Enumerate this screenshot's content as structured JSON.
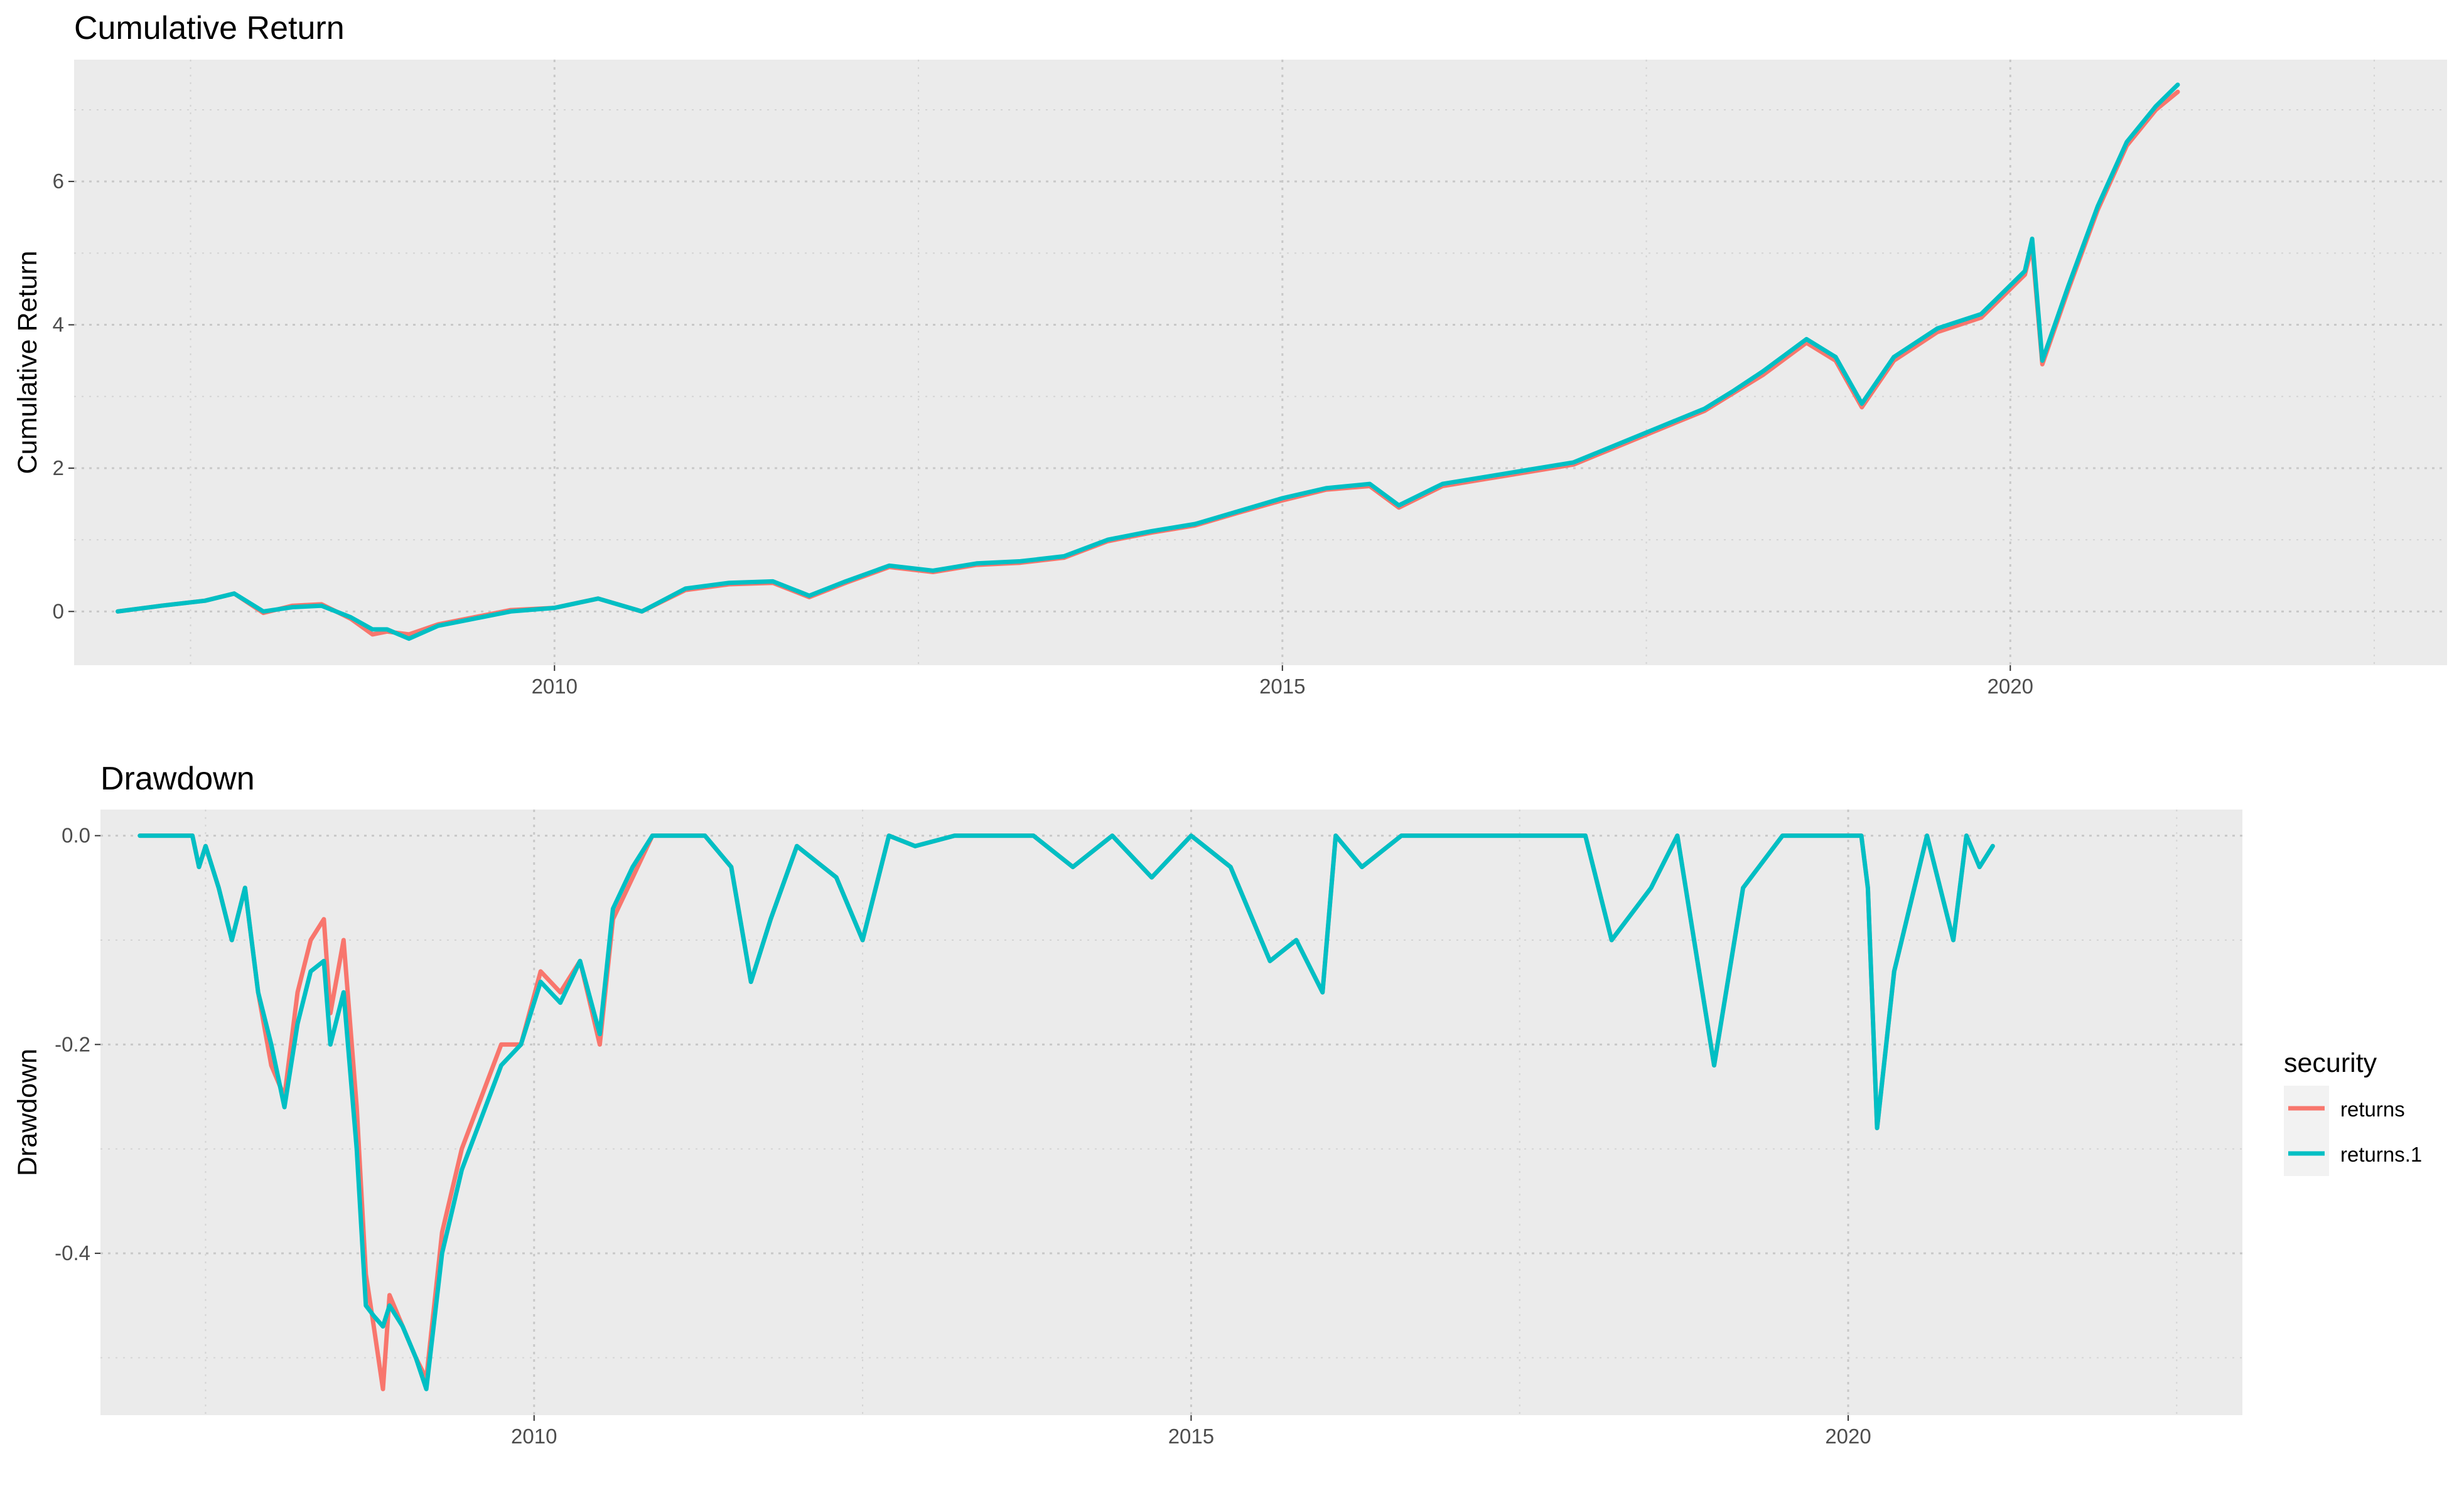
{
  "chart_data": [
    {
      "type": "line",
      "title": "Cumulative Return",
      "xlabel": "",
      "ylabel": "Cumulative Return",
      "xlim": [
        2006.7,
        2023.0
      ],
      "ylim": [
        -0.75,
        7.7
      ],
      "x_ticks": [
        2010,
        2015,
        2020
      ],
      "x_tick_labels": [
        "2010",
        "2015",
        "2020"
      ],
      "y_ticks": [
        0,
        2,
        4,
        6
      ],
      "y_tick_labels": [
        "0",
        "2",
        "4",
        "6"
      ],
      "grid": true,
      "series": [
        {
          "name": "returns",
          "color": "#F8766D",
          "x": [
            2007.0,
            2007.3,
            2007.6,
            2007.8,
            2008.0,
            2008.2,
            2008.4,
            2008.6,
            2008.75,
            2008.85,
            2009.0,
            2009.2,
            2009.4,
            2009.7,
            2010.0,
            2010.3,
            2010.6,
            2010.9,
            2011.2,
            2011.5,
            2011.75,
            2012.0,
            2012.3,
            2012.6,
            2012.9,
            2013.2,
            2013.5,
            2013.8,
            2014.1,
            2014.4,
            2014.7,
            2015.0,
            2015.3,
            2015.6,
            2015.8,
            2016.1,
            2016.4,
            2016.7,
            2017.0,
            2017.3,
            2017.6,
            2017.9,
            2018.1,
            2018.3,
            2018.6,
            2018.8,
            2018.98,
            2019.2,
            2019.5,
            2019.8,
            2020.1,
            2020.15,
            2020.22,
            2020.4,
            2020.6,
            2020.8,
            2021.0,
            2021.15
          ],
          "values": [
            0.0,
            0.08,
            0.15,
            0.25,
            -0.02,
            0.08,
            0.1,
            -0.1,
            -0.32,
            -0.28,
            -0.32,
            -0.18,
            -0.1,
            0.02,
            0.05,
            0.18,
            0.0,
            0.3,
            0.38,
            0.4,
            0.2,
            0.4,
            0.62,
            0.55,
            0.65,
            0.68,
            0.75,
            0.98,
            1.1,
            1.2,
            1.38,
            1.55,
            1.7,
            1.75,
            1.45,
            1.75,
            1.85,
            1.95,
            2.05,
            2.3,
            2.55,
            2.8,
            3.05,
            3.3,
            3.75,
            3.5,
            2.85,
            3.5,
            3.9,
            4.1,
            4.7,
            5.1,
            3.45,
            4.5,
            5.6,
            6.5,
            7.0,
            7.25
          ]
        },
        {
          "name": "returns.1",
          "color": "#00BFC4",
          "x": [
            2007.0,
            2007.3,
            2007.6,
            2007.8,
            2008.0,
            2008.2,
            2008.4,
            2008.6,
            2008.75,
            2008.85,
            2009.0,
            2009.2,
            2009.4,
            2009.7,
            2010.0,
            2010.3,
            2010.6,
            2010.9,
            2011.2,
            2011.5,
            2011.75,
            2012.0,
            2012.3,
            2012.6,
            2012.9,
            2013.2,
            2013.5,
            2013.8,
            2014.1,
            2014.4,
            2014.7,
            2015.0,
            2015.3,
            2015.6,
            2015.8,
            2016.1,
            2016.4,
            2016.7,
            2017.0,
            2017.3,
            2017.6,
            2017.9,
            2018.1,
            2018.3,
            2018.6,
            2018.8,
            2018.98,
            2019.2,
            2019.5,
            2019.8,
            2020.1,
            2020.15,
            2020.22,
            2020.4,
            2020.6,
            2020.8,
            2021.0,
            2021.15
          ],
          "values": [
            0.0,
            0.08,
            0.15,
            0.25,
            0.0,
            0.06,
            0.08,
            -0.08,
            -0.25,
            -0.25,
            -0.38,
            -0.2,
            -0.12,
            0.0,
            0.05,
            0.18,
            0.0,
            0.32,
            0.4,
            0.42,
            0.22,
            0.42,
            0.64,
            0.57,
            0.67,
            0.7,
            0.77,
            1.0,
            1.12,
            1.22,
            1.4,
            1.58,
            1.72,
            1.78,
            1.48,
            1.78,
            1.88,
            1.98,
            2.08,
            2.33,
            2.58,
            2.83,
            3.08,
            3.35,
            3.8,
            3.55,
            2.9,
            3.55,
            3.95,
            4.15,
            4.75,
            5.2,
            3.5,
            4.55,
            5.65,
            6.55,
            7.05,
            7.35
          ]
        }
      ]
    },
    {
      "type": "line",
      "title": "Drawdown",
      "xlabel": "",
      "ylabel": "Drawdown",
      "xlim": [
        2006.7,
        2023.0
      ],
      "ylim": [
        -0.555,
        0.025
      ],
      "x_ticks": [
        2010,
        2015,
        2020
      ],
      "x_tick_labels": [
        "2010",
        "2015",
        "2020"
      ],
      "y_ticks": [
        0.0,
        -0.2,
        -0.4
      ],
      "y_tick_labels": [
        "0.0",
        "-0.2",
        "-0.4"
      ],
      "grid": true,
      "legend": {
        "title": "security",
        "position": "right",
        "entries": [
          "returns",
          "returns.1"
        ]
      },
      "series": [
        {
          "name": "returns",
          "color": "#F8766D",
          "x": [
            2007.0,
            2007.2,
            2007.4,
            2007.45,
            2007.5,
            2007.6,
            2007.7,
            2007.8,
            2007.9,
            2008.0,
            2008.1,
            2008.2,
            2008.3,
            2008.4,
            2008.45,
            2008.55,
            2008.65,
            2008.72,
            2008.78,
            2008.85,
            2008.9,
            2009.0,
            2009.1,
            2009.18,
            2009.3,
            2009.45,
            2009.6,
            2009.75,
            2009.9,
            2010.05,
            2010.2,
            2010.35,
            2010.5,
            2010.6,
            2010.75,
            2010.9,
            2011.1,
            2011.3,
            2011.5,
            2011.65,
            2011.8,
            2012.0,
            2012.3,
            2012.5,
            2012.7,
            2012.9,
            2013.2,
            2013.5,
            2013.8,
            2014.1,
            2014.4,
            2014.7,
            2015.0,
            2015.3,
            2015.6,
            2015.8,
            2016.0,
            2016.1,
            2016.3,
            2016.6,
            2017.0,
            2017.5,
            2018.0,
            2018.2,
            2018.5,
            2018.7,
            2018.98,
            2019.2,
            2019.5,
            2019.8,
            2020.1,
            2020.15,
            2020.22,
            2020.35,
            2020.6,
            2020.8,
            2020.9,
            2021.0,
            2021.1
          ],
          "values": [
            0.0,
            0.0,
            0.0,
            -0.03,
            -0.01,
            -0.05,
            -0.1,
            -0.05,
            -0.15,
            -0.22,
            -0.25,
            -0.15,
            -0.1,
            -0.08,
            -0.17,
            -0.1,
            -0.26,
            -0.42,
            -0.47,
            -0.53,
            -0.44,
            -0.47,
            -0.5,
            -0.52,
            -0.38,
            -0.3,
            -0.25,
            -0.2,
            -0.2,
            -0.13,
            -0.15,
            -0.12,
            -0.2,
            -0.08,
            -0.04,
            0.0,
            0.0,
            0.0,
            -0.03,
            -0.14,
            -0.08,
            -0.01,
            -0.04,
            -0.1,
            0.0,
            -0.01,
            0.0,
            0.0,
            0.0,
            -0.03,
            0.0,
            -0.04,
            0.0,
            -0.03,
            -0.12,
            -0.1,
            -0.15,
            0.0,
            -0.03,
            0.0,
            0.0,
            0.0,
            0.0,
            -0.1,
            -0.05,
            0.0,
            -0.22,
            -0.05,
            0.0,
            0.0,
            0.0,
            -0.05,
            -0.28,
            -0.13,
            0.0,
            -0.1,
            0.0,
            -0.03,
            -0.01
          ]
        },
        {
          "name": "returns.1",
          "color": "#00BFC4",
          "x": [
            2007.0,
            2007.2,
            2007.4,
            2007.45,
            2007.5,
            2007.6,
            2007.7,
            2007.8,
            2007.9,
            2008.0,
            2008.1,
            2008.2,
            2008.3,
            2008.4,
            2008.45,
            2008.55,
            2008.65,
            2008.72,
            2008.78,
            2008.85,
            2008.9,
            2009.0,
            2009.1,
            2009.18,
            2009.3,
            2009.45,
            2009.6,
            2009.75,
            2009.9,
            2010.05,
            2010.2,
            2010.35,
            2010.5,
            2010.6,
            2010.75,
            2010.9,
            2011.1,
            2011.3,
            2011.5,
            2011.65,
            2011.8,
            2012.0,
            2012.3,
            2012.5,
            2012.7,
            2012.9,
            2013.2,
            2013.5,
            2013.8,
            2014.1,
            2014.4,
            2014.7,
            2015.0,
            2015.3,
            2015.6,
            2015.8,
            2016.0,
            2016.1,
            2016.3,
            2016.6,
            2017.0,
            2017.5,
            2018.0,
            2018.2,
            2018.5,
            2018.7,
            2018.98,
            2019.2,
            2019.5,
            2019.8,
            2020.1,
            2020.15,
            2020.22,
            2020.35,
            2020.6,
            2020.8,
            2020.9,
            2021.0,
            2021.1
          ],
          "values": [
            0.0,
            0.0,
            0.0,
            -0.03,
            -0.01,
            -0.05,
            -0.1,
            -0.05,
            -0.15,
            -0.2,
            -0.26,
            -0.18,
            -0.13,
            -0.12,
            -0.2,
            -0.15,
            -0.3,
            -0.45,
            -0.46,
            -0.47,
            -0.45,
            -0.47,
            -0.5,
            -0.53,
            -0.4,
            -0.32,
            -0.27,
            -0.22,
            -0.2,
            -0.14,
            -0.16,
            -0.12,
            -0.19,
            -0.07,
            -0.03,
            0.0,
            0.0,
            0.0,
            -0.03,
            -0.14,
            -0.08,
            -0.01,
            -0.04,
            -0.1,
            0.0,
            -0.01,
            0.0,
            0.0,
            0.0,
            -0.03,
            0.0,
            -0.04,
            0.0,
            -0.03,
            -0.12,
            -0.1,
            -0.15,
            0.0,
            -0.03,
            0.0,
            0.0,
            0.0,
            0.0,
            -0.1,
            -0.05,
            0.0,
            -0.22,
            -0.05,
            0.0,
            0.0,
            0.0,
            -0.05,
            -0.28,
            -0.13,
            0.0,
            -0.1,
            0.0,
            -0.03,
            -0.01
          ]
        }
      ]
    }
  ]
}
